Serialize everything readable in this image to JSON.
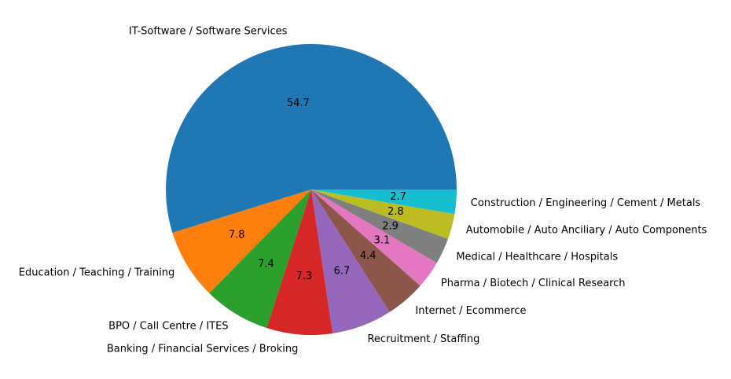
{
  "chart_data": {
    "type": "pie",
    "title": "",
    "start_angle": 0,
    "direction": "counterclockwise",
    "pct_format": "one-decimal",
    "slices": [
      {
        "label": "IT-Software / Software Services",
        "value": 54.7,
        "pct_label": "54.7",
        "color": "#1f77b4"
      },
      {
        "label": "Education / Teaching / Training",
        "value": 7.8,
        "pct_label": "7.8",
        "color": "#ff7f0e"
      },
      {
        "label": "BPO / Call Centre / ITES",
        "value": 7.4,
        "pct_label": "7.4",
        "color": "#2ca02c"
      },
      {
        "label": "Banking / Financial Services / Broking",
        "value": 7.3,
        "pct_label": "7.3",
        "color": "#d62728"
      },
      {
        "label": "Recruitment / Staffing",
        "value": 6.7,
        "pct_label": "6.7",
        "color": "#9467bd"
      },
      {
        "label": "Internet / Ecommerce",
        "value": 4.4,
        "pct_label": "4.4",
        "color": "#8c564b"
      },
      {
        "label": "Pharma / Biotech / Clinical Research",
        "value": 3.1,
        "pct_label": "3.1",
        "color": "#e377c2"
      },
      {
        "label": "Medical / Healthcare / Hospitals",
        "value": 2.9,
        "pct_label": "2.9",
        "color": "#7f7f7f"
      },
      {
        "label": "Automobile / Auto Anciliary / Auto Components",
        "value": 2.8,
        "pct_label": "2.8",
        "color": "#bcbd22"
      },
      {
        "label": "Construction / Engineering / Cement / Metals",
        "value": 2.7,
        "pct_label": "2.7",
        "color": "#17becf"
      }
    ]
  }
}
